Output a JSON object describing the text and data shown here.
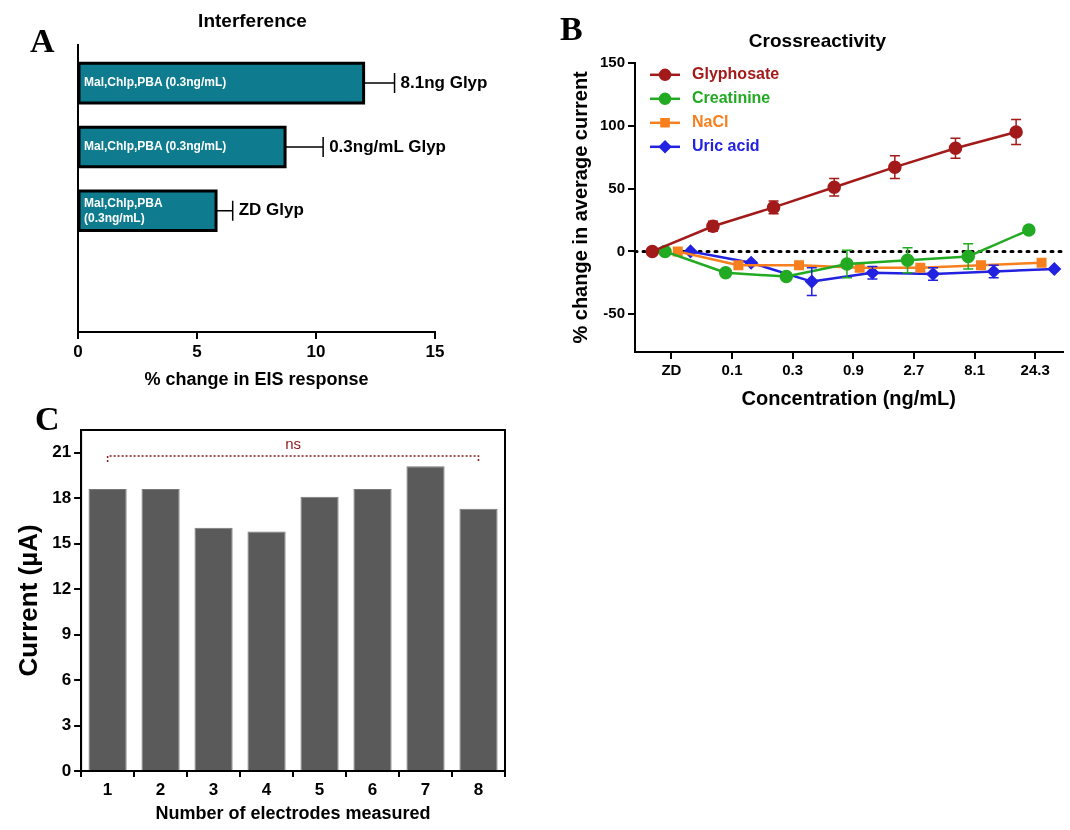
{
  "chart_data": [
    {
      "type": "bar",
      "orientation": "horizontal",
      "title": "Interference",
      "xlabel": "% change in EIS response",
      "categories": [
        "8.1ng Glyp",
        "0.3ng/mL Glyp",
        "ZD Glyp"
      ],
      "values": [
        12.0,
        8.7,
        5.8
      ],
      "errors": [
        [
          12.0,
          13.3
        ],
        [
          8.7,
          10.3
        ],
        [
          5.8,
          6.5
        ]
      ],
      "color": "#0f7b8f",
      "xlim": [
        0,
        15
      ],
      "xticks": [
        0,
        5,
        10,
        15
      ],
      "tick_labels": "x",
      "annotations": [
        "A",
        "Mal,Chlp,PBA (0.3ng/mL)",
        "Mal,Chlp,PBA (0.3ng/mL)",
        "Mal,Chlp,PBA (0.3ng/mL)"
      ]
    },
    {
      "type": "line",
      "title": "Crossreactivity",
      "xlabel": "Concentration (ng/mL)",
      "ylabel": "% change in average current",
      "categories": [
        "ZD",
        "0.1",
        "0.3",
        "0.9",
        "2.7",
        "8.1",
        "24.3"
      ],
      "ylim": [
        -80,
        150
      ],
      "yticks": [
        -50,
        0,
        50,
        100,
        150
      ],
      "legend": "top left",
      "ref_lines": [
        {
          "axis": "y",
          "value": 0,
          "color": "#000000",
          "line_style": "dotted"
        }
      ],
      "annotations": [
        "B"
      ],
      "series": [
        {
          "name": "Glyphosate",
          "color": "#a31a1a",
          "marker": "circle",
          "values": [
            0,
            20,
            35,
            51,
            67,
            82,
            95
          ],
          "errors": [
            null,
            4,
            5,
            7,
            9,
            8,
            10
          ]
        },
        {
          "name": "Creatinine",
          "color": "#22aa22",
          "marker": "circle",
          "values": [
            0,
            -17,
            -20,
            -10,
            -7,
            -4,
            17
          ],
          "errors": [
            null,
            null,
            null,
            11,
            10,
            10,
            null
          ]
        },
        {
          "name": "NaCl",
          "color": "#f77f1e",
          "marker": "square",
          "values": [
            0,
            -11,
            -11,
            -13,
            -13,
            -11,
            -9
          ]
        },
        {
          "name": "Uric acid",
          "color": "#2222e0",
          "marker": "diamond",
          "values": [
            0,
            -9,
            -24,
            -17,
            -18,
            -16,
            -14
          ],
          "errors": [
            null,
            null,
            11,
            5,
            5,
            5,
            null
          ]
        }
      ]
    },
    {
      "type": "bar",
      "xlabel": "Number of electrodes measured",
      "ylabel": "Current (µA)",
      "categories": [
        "1",
        "2",
        "3",
        "4",
        "5",
        "6",
        "7",
        "8"
      ],
      "values": [
        18.6,
        18.6,
        16.05,
        15.8,
        18.1,
        18.6,
        20.1,
        17.3
      ],
      "color": "#5a5a5a",
      "ylim": [
        0,
        22.5
      ],
      "yticks": [
        0,
        3,
        6,
        9,
        12,
        15,
        18,
        21
      ],
      "annotations": [
        "C",
        "ns"
      ]
    }
  ]
}
